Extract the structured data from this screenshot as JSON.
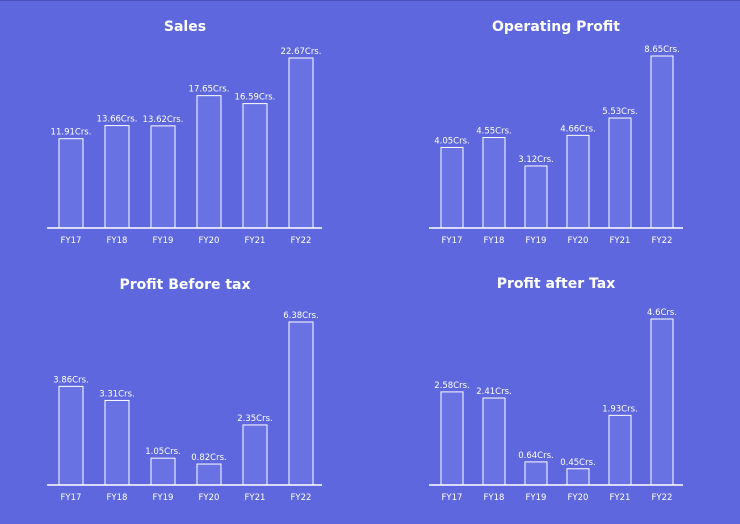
{
  "chart_data": [
    {
      "type": "bar",
      "title": "Sales",
      "categories": [
        "FY17",
        "FY18",
        "FY19",
        "FY20",
        "FY21",
        "FY22"
      ],
      "values": [
        11.91,
        13.66,
        13.62,
        17.65,
        16.59,
        22.67
      ],
      "data_labels": [
        "11.91Crs.",
        "13.66Crs.",
        "13.62Crs.",
        "17.65Crs.",
        "16.59Crs.",
        "22.67Crs."
      ],
      "ylim": [
        0,
        22.67
      ],
      "grid": false
    },
    {
      "type": "bar",
      "title": "Operating Profit",
      "categories": [
        "FY17",
        "FY18",
        "FY19",
        "FY20",
        "FY21",
        "FY22"
      ],
      "values": [
        4.05,
        4.55,
        3.12,
        4.66,
        5.53,
        8.65
      ],
      "data_labels": [
        "4.05Crs.",
        "4.55Crs.",
        "3.12Crs.",
        "4.66Crs.",
        "5.53Crs.",
        "8.65Crs."
      ],
      "ylim": [
        0,
        8.65
      ],
      "grid": false
    },
    {
      "type": "bar",
      "title": "Profit Before tax",
      "categories": [
        "FY17",
        "FY18",
        "FY19",
        "FY20",
        "FY21",
        "FY22"
      ],
      "values": [
        3.86,
        3.31,
        1.05,
        0.82,
        2.35,
        6.38
      ],
      "data_labels": [
        "3.86Crs.",
        "3.31Crs.",
        "1.05Crs.",
        "0.82Crs.",
        "2.35Crs.",
        "6.38Crs."
      ],
      "ylim": [
        0,
        6.38
      ],
      "grid": false
    },
    {
      "type": "bar",
      "title": "Profit after Tax",
      "categories": [
        "FY17",
        "FY18",
        "FY19",
        "FY20",
        "FY21",
        "FY22"
      ],
      "values": [
        2.58,
        2.41,
        0.64,
        0.45,
        1.93,
        4.6
      ],
      "data_labels": [
        "2.58Crs.",
        "2.41Crs.",
        "0.64Crs.",
        "0.45Crs.",
        "1.93Crs.",
        "4.6Crs."
      ],
      "ylim": [
        0,
        4.6
      ],
      "grid": false
    }
  ],
  "colors": {
    "background": "#5f67de",
    "bar_fill": "#6872e2",
    "bar_stroke": "#ffffff",
    "text": "#ffffff"
  }
}
